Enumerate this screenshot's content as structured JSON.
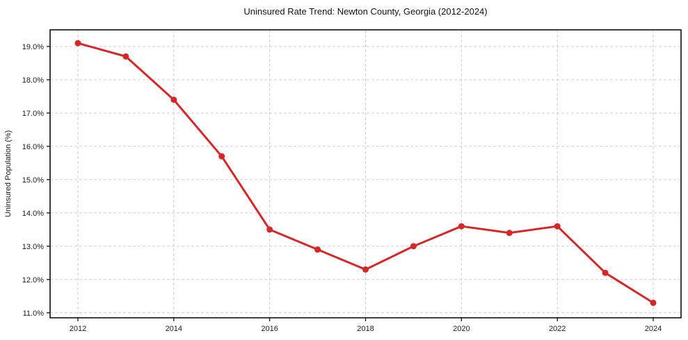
{
  "chart_data": {
    "type": "line",
    "title": "Uninsured Rate Trend: Newton County, Georgia (2012-2024)",
    "xlabel": "",
    "ylabel": "Uninsured Population (%)",
    "x": [
      2012,
      2013,
      2014,
      2015,
      2016,
      2017,
      2018,
      2019,
      2020,
      2021,
      2022,
      2023,
      2024
    ],
    "series": [
      {
        "name": "Uninsured Rate",
        "values": [
          19.1,
          18.7,
          17.4,
          15.7,
          13.5,
          12.9,
          12.3,
          13.0,
          13.6,
          13.4,
          13.6,
          12.2,
          11.3
        ]
      }
    ],
    "xlim": [
      2011.42,
      2024.58
    ],
    "ylim": [
      10.85,
      19.5
    ],
    "xticks": {
      "values": [
        2012,
        2014,
        2016,
        2018,
        2020,
        2022,
        2024
      ],
      "labels": [
        "2012",
        "2014",
        "2016",
        "2018",
        "2020",
        "2022",
        "2024"
      ]
    },
    "yticks": {
      "values": [
        19.0,
        18.0,
        17.0,
        16.0,
        15.0,
        14.0,
        13.0,
        12.0,
        11.0
      ],
      "labels": [
        "19.0%",
        "18.0%",
        "17.0%",
        "16.0%",
        "15.0%",
        "14.0%",
        "13.0%",
        "12.0%",
        "11.0%"
      ]
    },
    "grid": "dashed",
    "legend": "none",
    "line_color": "#d62728",
    "grid_color": "#cccccc",
    "spine_color": "#000000",
    "text_color": "#1a1a1a",
    "marker": "circle"
  }
}
